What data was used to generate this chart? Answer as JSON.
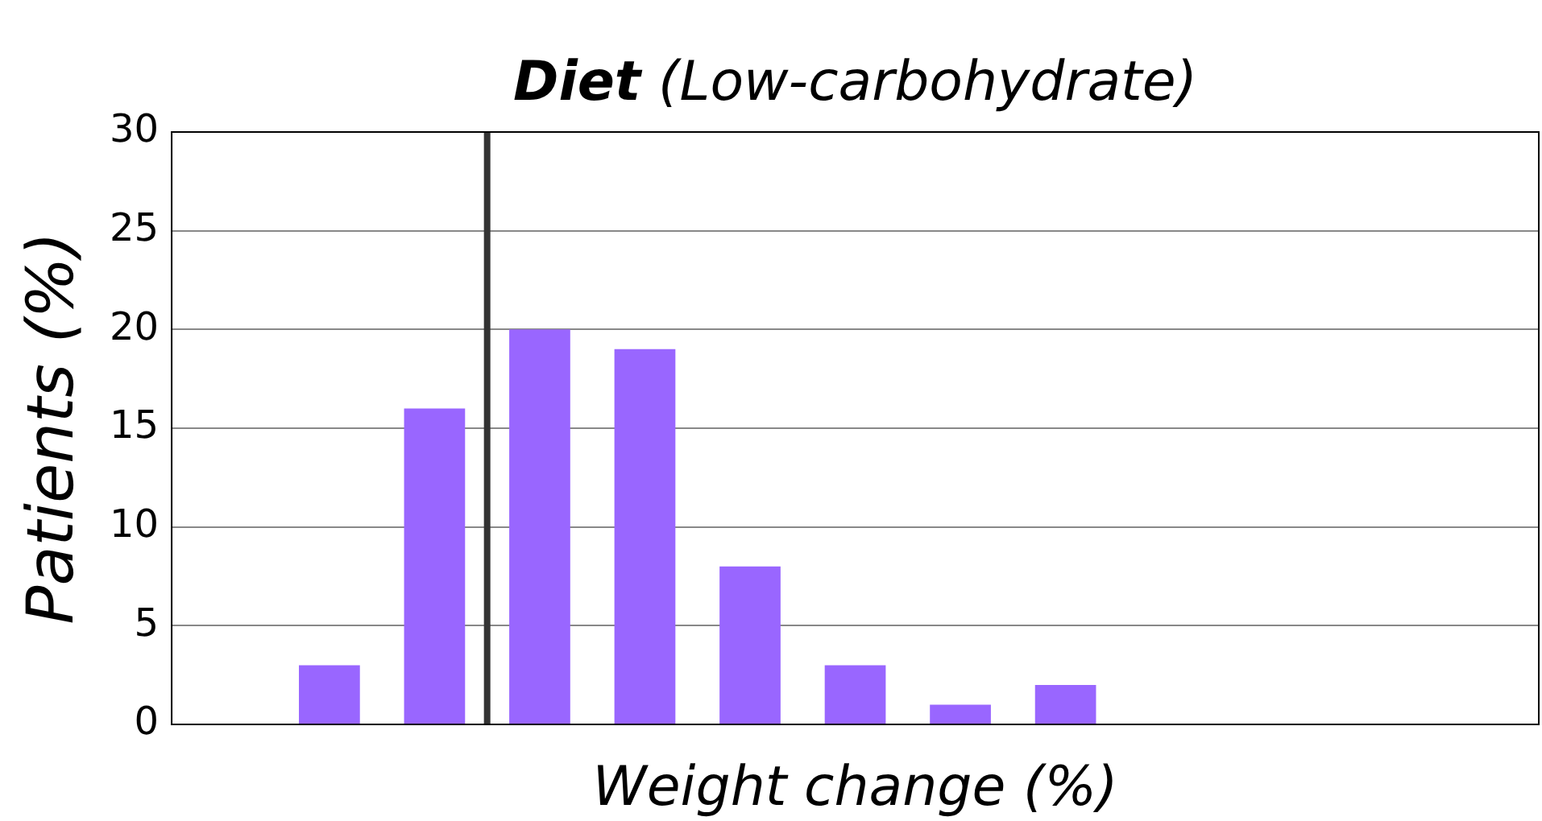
{
  "chart_data": {
    "type": "bar",
    "title": "Diet (Low-carbohydrate)",
    "xlabel": "Weight change (%)",
    "ylabel": "Patients (%)",
    "categories": [
      null,
      null,
      null,
      null,
      null,
      null,
      null,
      null,
      null,
      null,
      null,
      null,
      null
    ],
    "values": [
      null,
      3,
      16,
      20,
      19,
      8,
      3,
      1,
      2,
      null,
      null,
      null,
      null
    ],
    "color": "#9966ff",
    "ylim": [
      0,
      30
    ],
    "yticks": [
      0,
      5,
      10,
      15,
      20,
      25,
      30
    ],
    "grid": "y",
    "tick_labels": "y",
    "legend": false
  }
}
